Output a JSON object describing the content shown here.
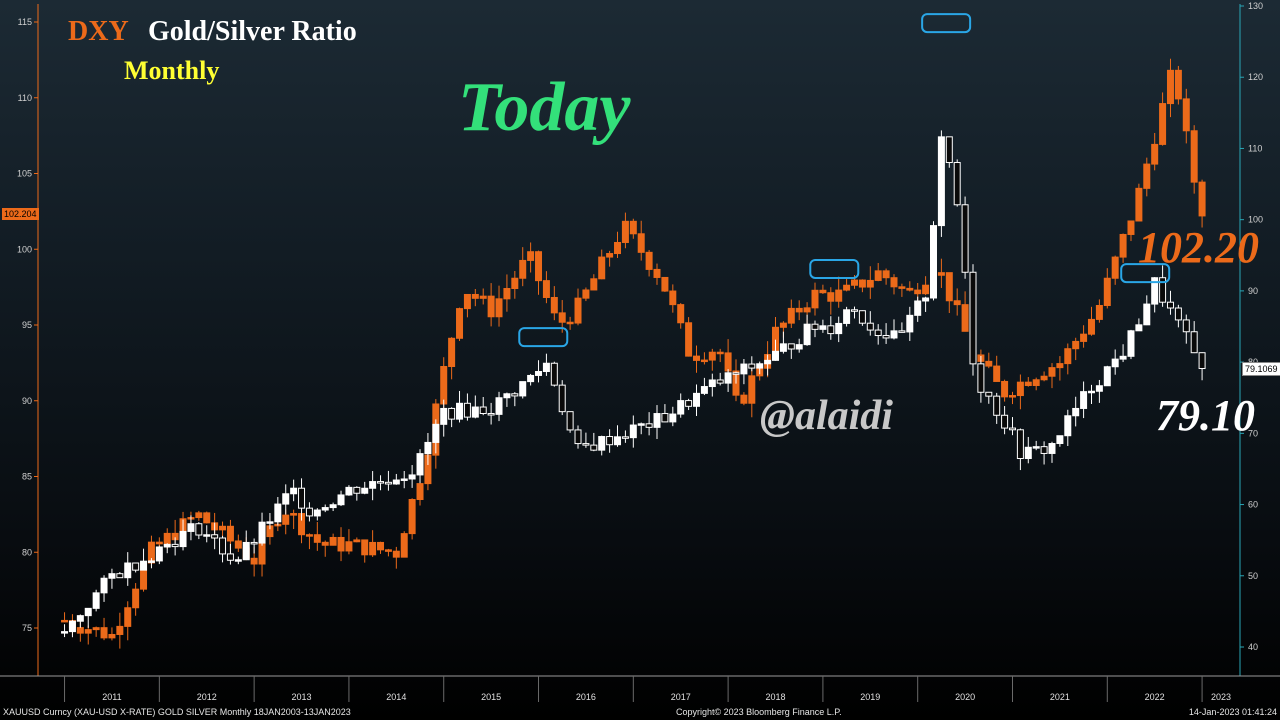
{
  "colors": {
    "dxy": "#ec6a1a",
    "gsr": "#ffffff",
    "monthly": "#ffff33",
    "today": "#33e07a",
    "highlight": "#2aa6e6"
  },
  "labels": {
    "dxy": "DXY",
    "gold_silver": "Gold/Silver Ratio",
    "monthly": "Monthly",
    "today": "Today",
    "handle": "@alaidi",
    "dxy_last": "102.20",
    "gsr_last": "79.10"
  },
  "footer": {
    "left": "XAUUSD Curncy (XAU-USD X-RATE) GOLD SILVER  Monthly 18JAN2003-13JAN2023",
    "center": "Copyright© 2023 Bloomberg Finance L.P.",
    "right": "14-Jan-2023 01:41:24"
  },
  "chart_data": {
    "type": "candlestick",
    "x_labels": [
      "2011",
      "2012",
      "2013",
      "2014",
      "2015",
      "2016",
      "2017",
      "2018",
      "2019",
      "2020",
      "2021",
      "2022",
      "2023"
    ],
    "left_axis": {
      "ticks": [
        75,
        80,
        85,
        90,
        95,
        100,
        105,
        110,
        115
      ],
      "last_value_tag": "102.204"
    },
    "right_axis": {
      "ticks": [
        40,
        50,
        60,
        70,
        80,
        90,
        100,
        110,
        120,
        130
      ],
      "last_value_tag": "79.1069"
    },
    "series": [
      {
        "name": "DXY",
        "axis": "left",
        "anchors": [
          [
            2011.0,
            75.5
          ],
          [
            2011.5,
            74.5
          ],
          [
            2011.9,
            80.0
          ],
          [
            2012.4,
            82.5
          ],
          [
            2012.6,
            81.5
          ],
          [
            2013.0,
            79.5
          ],
          [
            2013.3,
            83.0
          ],
          [
            2013.7,
            80.5
          ],
          [
            2014.0,
            80.5
          ],
          [
            2014.5,
            80.0
          ],
          [
            2014.8,
            86.0
          ],
          [
            2015.0,
            92.0
          ],
          [
            2015.2,
            97.5
          ],
          [
            2015.5,
            96.0
          ],
          [
            2015.9,
            99.5
          ],
          [
            2016.2,
            95.0
          ],
          [
            2016.4,
            96.0
          ],
          [
            2016.9,
            101.5
          ],
          [
            2017.3,
            98.0
          ],
          [
            2017.6,
            93.0
          ],
          [
            2017.9,
            93.5
          ],
          [
            2018.1,
            89.5
          ],
          [
            2018.5,
            94.5
          ],
          [
            2018.9,
            97.0
          ],
          [
            2019.2,
            97.0
          ],
          [
            2019.6,
            98.5
          ],
          [
            2019.9,
            97.0
          ],
          [
            2020.2,
            99.0
          ],
          [
            2020.6,
            93.0
          ],
          [
            2020.9,
            90.5
          ],
          [
            2021.3,
            92.0
          ],
          [
            2021.5,
            92.5
          ],
          [
            2021.9,
            96.0
          ],
          [
            2022.3,
            103.0
          ],
          [
            2022.7,
            112.0
          ],
          [
            2022.9,
            105.0
          ],
          [
            2023.0,
            102.2
          ]
        ]
      },
      {
        "name": "Gold/Silver Ratio",
        "axis": "right",
        "anchors": [
          [
            2011.0,
            42.0
          ],
          [
            2011.5,
            50.0
          ],
          [
            2011.9,
            53.0
          ],
          [
            2012.4,
            57.0
          ],
          [
            2012.8,
            52.0
          ],
          [
            2013.0,
            55.0
          ],
          [
            2013.4,
            62.0
          ],
          [
            2013.6,
            59.0
          ],
          [
            2014.0,
            62.0
          ],
          [
            2014.5,
            64.0
          ],
          [
            2014.7,
            65.0
          ],
          [
            2015.0,
            73.0
          ],
          [
            2015.5,
            73.5
          ],
          [
            2015.8,
            76.5
          ],
          [
            2016.1,
            80.0
          ],
          [
            2016.4,
            67.5
          ],
          [
            2016.6,
            68.5
          ],
          [
            2016.9,
            70.0
          ],
          [
            2017.3,
            72.0
          ],
          [
            2017.8,
            76.5
          ],
          [
            2018.2,
            79.0
          ],
          [
            2018.5,
            81.0
          ],
          [
            2018.9,
            85.0
          ],
          [
            2019.1,
            85.0
          ],
          [
            2019.3,
            88.0
          ],
          [
            2019.5,
            85.0
          ],
          [
            2019.8,
            83.0
          ],
          [
            2020.1,
            90.0
          ],
          [
            2020.25,
            112.0
          ],
          [
            2020.45,
            100.0
          ],
          [
            2020.6,
            78.0
          ],
          [
            2020.9,
            72.0
          ],
          [
            2021.1,
            67.0
          ],
          [
            2021.4,
            68.0
          ],
          [
            2021.8,
            76.0
          ],
          [
            2022.0,
            79.0
          ],
          [
            2022.2,
            82.0
          ],
          [
            2022.5,
            91.0
          ],
          [
            2022.8,
            84.0
          ],
          [
            2023.0,
            79.1
          ]
        ]
      }
    ],
    "highlights": [
      {
        "year": 2016.05,
        "axis": "left",
        "value": 94.2
      },
      {
        "year": 2019.12,
        "axis": "left",
        "value": 98.7
      },
      {
        "year": 2020.3,
        "axis": "right",
        "value": 127.6
      },
      {
        "year": 2022.4,
        "axis": "right",
        "value": 92.5
      }
    ]
  }
}
